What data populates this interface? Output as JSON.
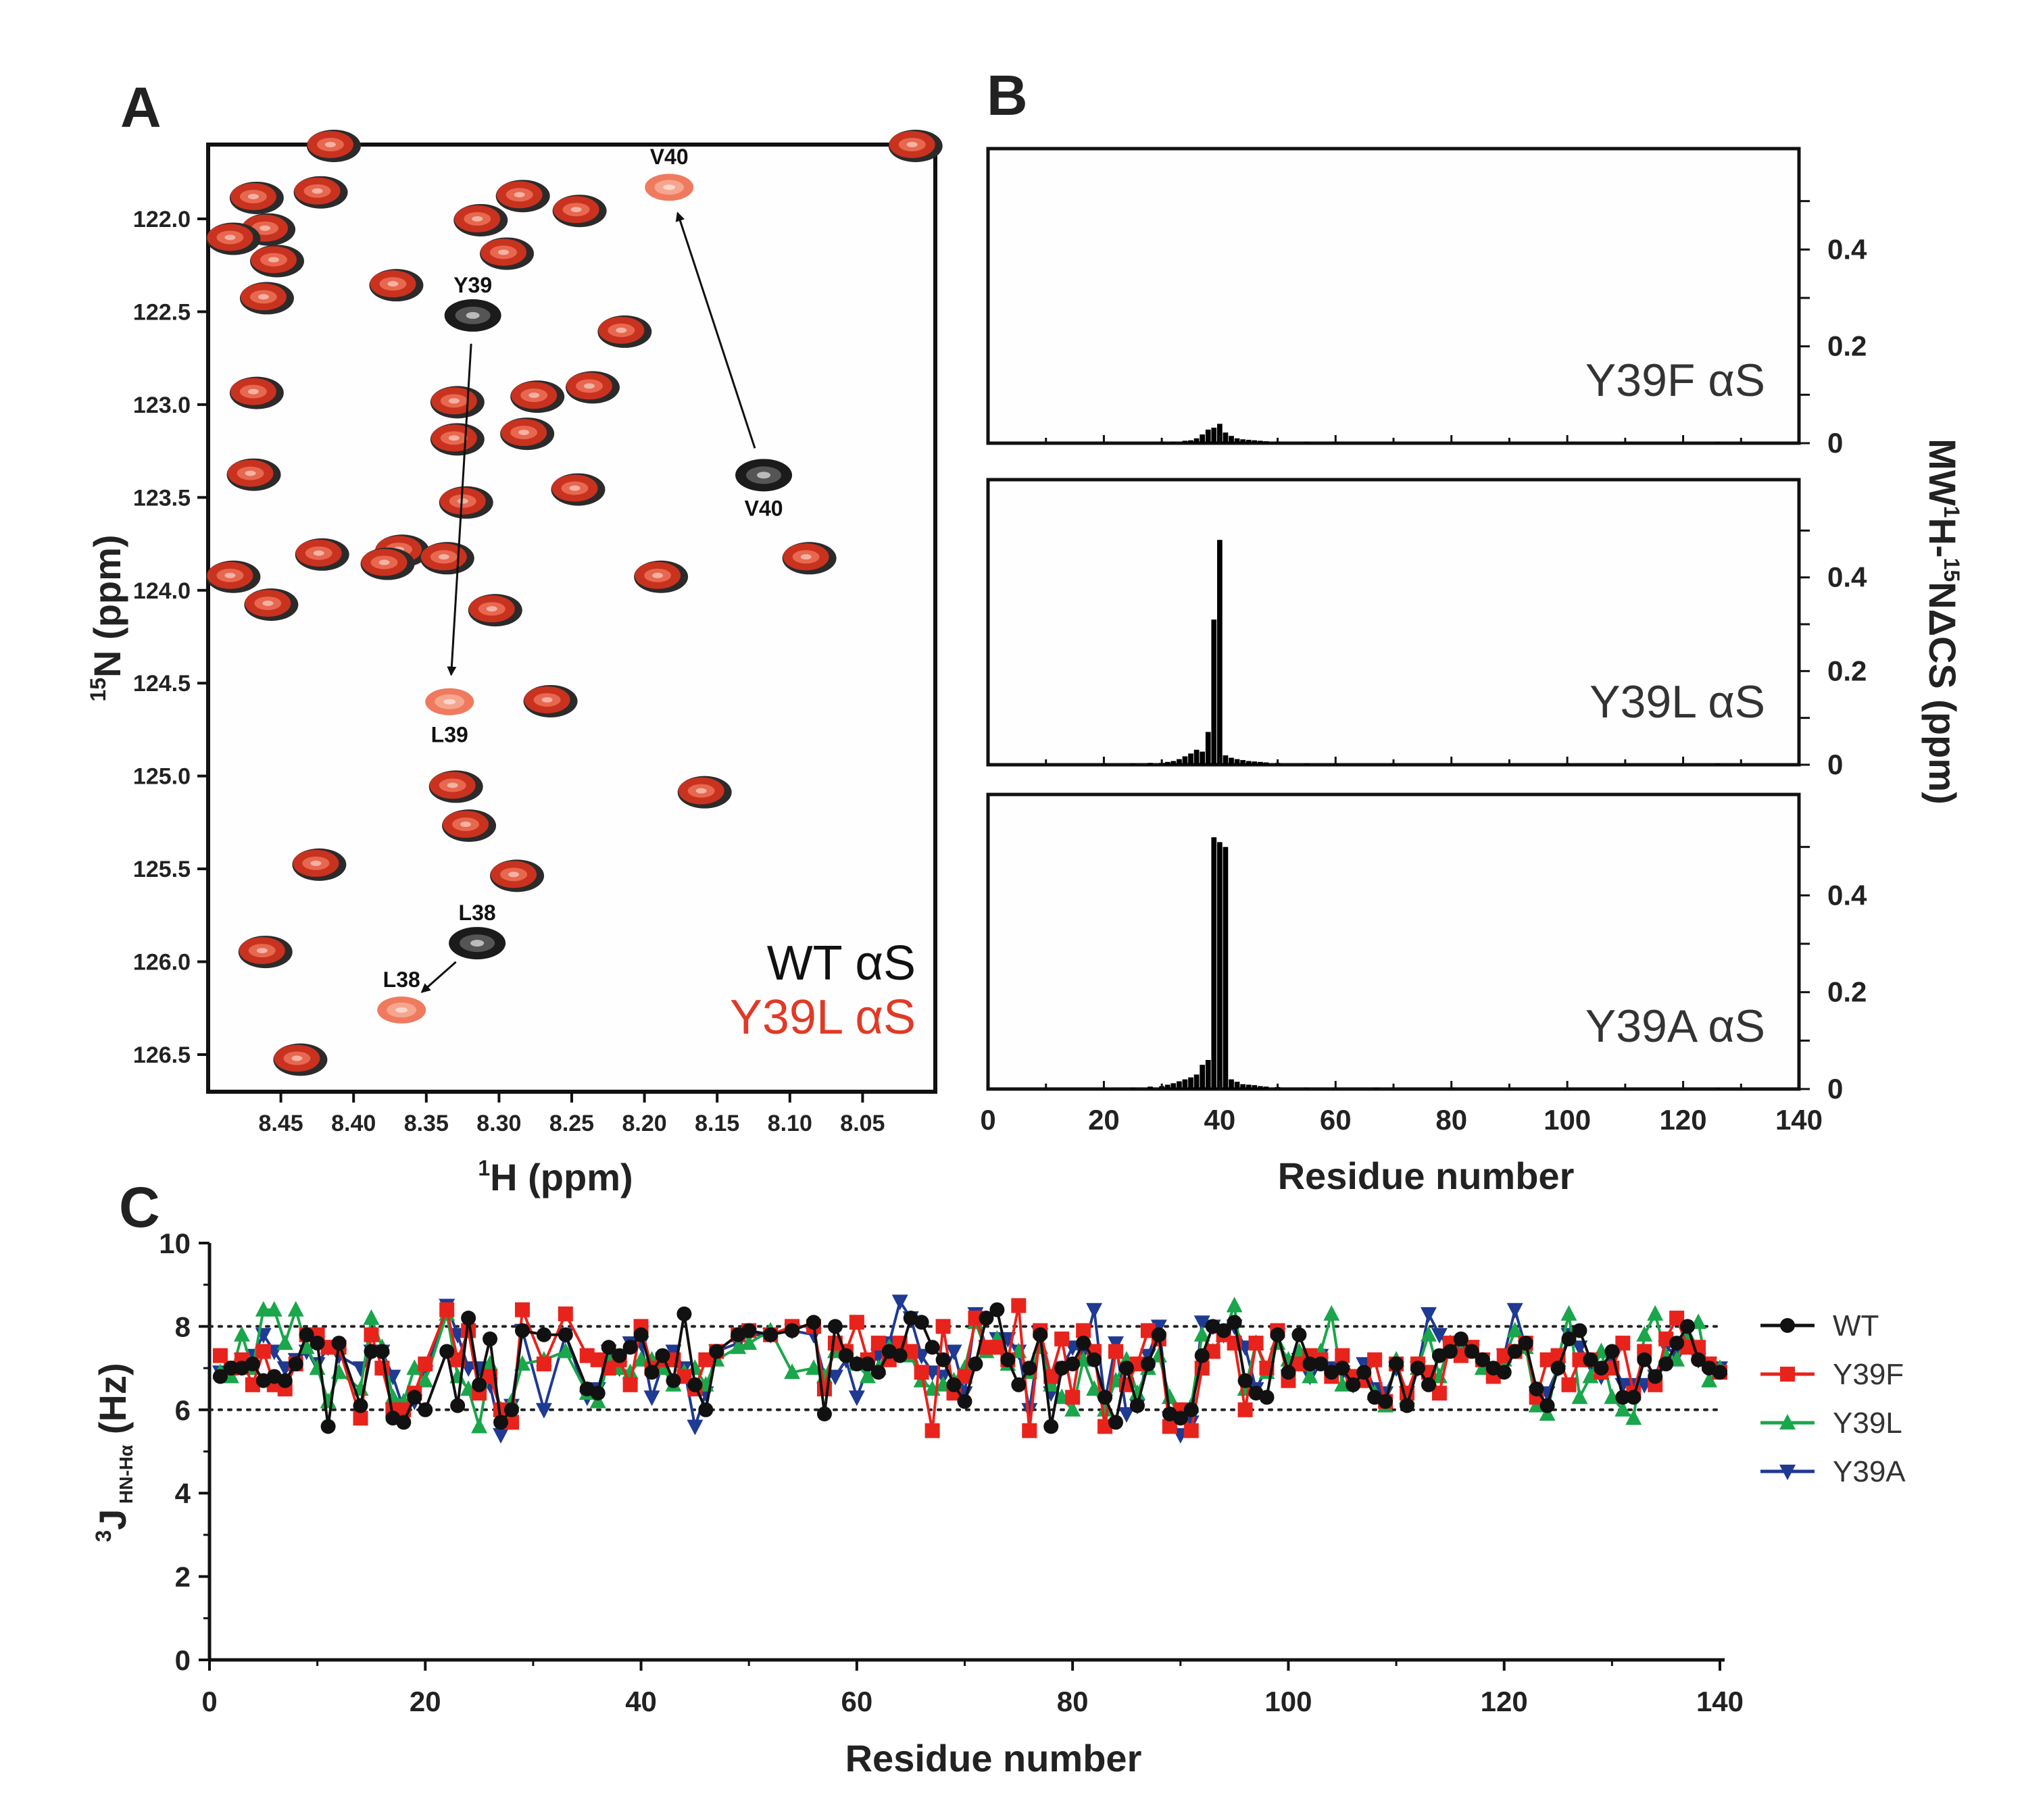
{
  "chart_data": [
    {
      "panel": "A",
      "type": "scatter",
      "subtype": "2D NMR HSQC overlay",
      "xlabel": "1H (ppm)",
      "ylabel": "15N (ppm)",
      "xlim": [
        8.5,
        8.0
      ],
      "ylim": [
        126.7,
        121.6
      ],
      "xticks": [
        "8.45",
        "8.40",
        "8.35",
        "8.30",
        "8.25",
        "8.20",
        "8.15",
        "8.10",
        "8.05"
      ],
      "yticks": [
        "122.0",
        "122.5",
        "123.0",
        "123.5",
        "124.0",
        "124.5",
        "125.0",
        "125.5",
        "126.0",
        "126.5"
      ],
      "legend": [
        {
          "label": "WT αS",
          "color": "#111111"
        },
        {
          "label": "Y39L αS",
          "color": "#e03a26"
        }
      ],
      "peaks_overlap": [
        [
          8.415,
          121.6
        ],
        [
          8.468,
          121.88
        ],
        [
          8.424,
          121.85
        ],
        [
          8.46,
          122.05
        ],
        [
          8.454,
          122.22
        ],
        [
          8.484,
          122.1
        ],
        [
          8.461,
          122.42
        ],
        [
          8.314,
          122.0
        ],
        [
          8.296,
          122.18
        ],
        [
          8.285,
          121.87
        ],
        [
          8.246,
          121.95
        ],
        [
          8.372,
          122.35
        ],
        [
          8.215,
          122.6
        ],
        [
          8.237,
          122.9
        ],
        [
          8.275,
          122.95
        ],
        [
          8.33,
          122.98
        ],
        [
          8.33,
          123.18
        ],
        [
          8.282,
          123.15
        ],
        [
          8.468,
          122.93
        ],
        [
          8.47,
          123.37
        ],
        [
          8.324,
          123.52
        ],
        [
          8.247,
          123.45
        ],
        [
          8.368,
          123.78
        ],
        [
          8.423,
          123.8
        ],
        [
          8.484,
          123.92
        ],
        [
          8.378,
          123.85
        ],
        [
          8.337,
          123.82
        ],
        [
          8.458,
          124.07
        ],
        [
          8.19,
          123.92
        ],
        [
          8.088,
          123.82
        ],
        [
          8.304,
          124.1
        ],
        [
          8.266,
          124.59
        ],
        [
          8.331,
          125.05
        ],
        [
          8.322,
          125.26
        ],
        [
          8.16,
          125.08
        ],
        [
          8.289,
          125.53
        ],
        [
          8.425,
          125.47
        ],
        [
          8.462,
          125.94
        ],
        [
          8.438,
          126.52
        ],
        [
          8.015,
          121.6
        ]
      ],
      "shifted_peaks": [
        {
          "label": "Y39",
          "wt": [
            8.318,
            122.52
          ],
          "mutant_label": "L39",
          "mutant": [
            8.334,
            124.6
          ]
        },
        {
          "label": "V40",
          "wt": [
            8.118,
            123.38
          ],
          "mutant_label": "V40",
          "mutant": [
            8.183,
            121.83
          ]
        },
        {
          "label": "L38",
          "wt": [
            8.315,
            125.9
          ],
          "mutant_label": "L38",
          "mutant": [
            8.367,
            126.26
          ]
        }
      ]
    },
    {
      "panel": "B",
      "type": "bar",
      "xlabel": "Residue number",
      "ylabel": "MW 1H-15NΔCS (ppm)",
      "xlim": [
        0,
        140
      ],
      "ylim": [
        0,
        0.6
      ],
      "xticks": [
        "0",
        "20",
        "40",
        "60",
        "80",
        "100",
        "120",
        "140"
      ],
      "yticks": [
        "0",
        "0.2",
        "0.4"
      ],
      "series": [
        {
          "name": "Y39F αS",
          "residues": [
            30,
            32,
            34,
            35,
            36,
            37,
            38,
            39,
            40,
            41,
            42,
            43,
            44,
            45,
            46,
            47,
            48,
            50,
            55,
            60,
            126
          ],
          "values": [
            0.002,
            0.003,
            0.005,
            0.006,
            0.01,
            0.018,
            0.028,
            0.032,
            0.04,
            0.022,
            0.015,
            0.01,
            0.008,
            0.007,
            0.006,
            0.005,
            0.004,
            0.003,
            0.002,
            0.002,
            0.002
          ]
        },
        {
          "name": "Y39L αS",
          "residues": [
            20,
            25,
            28,
            30,
            31,
            32,
            33,
            34,
            35,
            36,
            37,
            38,
            39,
            40,
            41,
            42,
            43,
            44,
            45,
            46,
            47,
            48,
            50,
            55,
            60,
            70,
            80,
            100,
            126
          ],
          "values": [
            0.002,
            0.003,
            0.004,
            0.004,
            0.006,
            0.008,
            0.012,
            0.018,
            0.024,
            0.032,
            0.028,
            0.07,
            0.31,
            0.48,
            0.02,
            0.015,
            0.012,
            0.01,
            0.008,
            0.007,
            0.006,
            0.005,
            0.004,
            0.003,
            0.002,
            0.002,
            0.002,
            0.002,
            0.002
          ]
        },
        {
          "name": "Y39A αS",
          "residues": [
            10,
            20,
            25,
            28,
            30,
            31,
            32,
            33,
            34,
            35,
            36,
            37,
            38,
            39,
            40,
            41,
            42,
            43,
            44,
            45,
            46,
            47,
            48,
            50,
            55,
            60,
            67,
            80,
            100,
            126
          ],
          "values": [
            0.002,
            0.002,
            0.003,
            0.005,
            0.006,
            0.009,
            0.012,
            0.016,
            0.02,
            0.024,
            0.03,
            0.05,
            0.06,
            0.52,
            0.51,
            0.5,
            0.02,
            0.015,
            0.01,
            0.009,
            0.008,
            0.006,
            0.005,
            0.004,
            0.003,
            0.002,
            0.003,
            0.002,
            0.002,
            0.002
          ]
        }
      ]
    },
    {
      "panel": "C",
      "type": "line",
      "xlabel": "Residue number",
      "ylabel": "3J HN-Hα (Hz)",
      "xlim": [
        0,
        140
      ],
      "ylim": [
        0,
        10
      ],
      "xticks": [
        "0",
        "20",
        "40",
        "60",
        "80",
        "100",
        "120",
        "140"
      ],
      "yticks": [
        "0",
        "2",
        "4",
        "6",
        "8",
        "10"
      ],
      "reference_lines": [
        6,
        8
      ],
      "x": [
        1,
        2,
        3,
        4,
        5,
        6,
        7,
        8,
        9,
        10,
        11,
        12,
        14,
        15,
        16,
        17,
        18,
        19,
        20,
        22,
        23,
        24,
        25,
        26,
        27,
        28,
        29,
        31,
        33,
        35,
        36,
        37,
        38,
        39,
        40,
        41,
        42,
        43,
        44,
        45,
        46,
        47,
        49,
        50,
        52,
        54,
        56,
        57,
        58,
        59,
        60,
        61,
        62,
        63,
        64,
        65,
        66,
        67,
        68,
        69,
        70,
        71,
        72,
        73,
        74,
        75,
        76,
        77,
        78,
        79,
        80,
        81,
        82,
        83,
        84,
        85,
        86,
        87,
        88,
        89,
        90,
        91,
        92,
        93,
        94,
        95,
        96,
        97,
        98,
        99,
        100,
        101,
        102,
        103,
        104,
        105,
        106,
        107,
        108,
        109,
        110,
        111,
        112,
        113,
        114,
        115,
        116,
        117,
        118,
        119,
        120,
        121,
        122,
        123,
        124,
        125,
        126,
        127,
        128,
        129,
        130,
        131,
        132,
        133,
        134,
        135,
        136,
        137,
        138,
        139,
        140
      ],
      "series": [
        {
          "name": "WT",
          "color": "#111111",
          "marker": "circle",
          "values": [
            6.8,
            7.0,
            7.0,
            7.1,
            6.7,
            6.8,
            6.7,
            7.1,
            7.8,
            7.6,
            5.6,
            7.6,
            6.1,
            7.4,
            7.4,
            5.8,
            5.7,
            6.3,
            6.0,
            7.4,
            6.1,
            8.2,
            6.6,
            7.7,
            5.7,
            6.0,
            7.9,
            7.8,
            7.8,
            6.5,
            6.4,
            7.5,
            7.3,
            7.5,
            7.8,
            6.9,
            7.3,
            6.7,
            8.3,
            6.6,
            6.0,
            7.4,
            7.8,
            7.9,
            7.8,
            7.9,
            8.1,
            5.9,
            8.0,
            7.3,
            7.1,
            7.1,
            6.9,
            7.4,
            7.3,
            8.2,
            8.1,
            7.5,
            7.2,
            6.6,
            6.2,
            7.1,
            8.2,
            8.4,
            7.2,
            6.6,
            7.0,
            7.8,
            5.6,
            7.0,
            7.1,
            7.6,
            7.2,
            6.3,
            5.7,
            7.0,
            6.1,
            7.1,
            7.8,
            5.9,
            5.8,
            6.0,
            7.3,
            8.0,
            7.9,
            8.1,
            6.7,
            6.4,
            6.3,
            7.8,
            6.9,
            7.8,
            7.1,
            7.1,
            6.9,
            7.0,
            6.6,
            6.9,
            6.3,
            6.2,
            7.1,
            6.1,
            7.0,
            6.6,
            7.3,
            7.4,
            7.7,
            7.4,
            7.2,
            7.0,
            6.9,
            7.4,
            7.6,
            6.5,
            6.1,
            7.0,
            7.7,
            7.9,
            7.2,
            7.0,
            7.4,
            6.3,
            6.3,
            7.2,
            6.8,
            7.1,
            7.6,
            8.0,
            7.2,
            7.0,
            6.9
          ]
        },
        {
          "name": "Y39F",
          "color": "#e8231c",
          "marker": "square",
          "values": [
            7.3,
            7.0,
            7.2,
            6.6,
            7.4,
            6.6,
            6.5,
            7.1,
            7.8,
            7.8,
            7.5,
            7.5,
            5.8,
            7.8,
            7.0,
            6.0,
            6.0,
            6.4,
            7.1,
            8.4,
            7.2,
            7.9,
            6.4,
            6.8,
            6.0,
            5.7,
            8.4,
            7.1,
            8.3,
            7.3,
            7.2,
            7.0,
            7.2,
            6.6,
            8.0,
            7.0,
            7.2,
            7.2,
            6.8,
            6.5,
            7.2,
            7.4,
            7.8,
            7.9,
            7.8,
            8.0,
            8.0,
            6.5,
            7.6,
            7.4,
            8.1,
            7.2,
            7.6,
            7.2,
            7.6,
            7.4,
            6.9,
            5.5,
            8.0,
            6.4,
            6.8,
            8.2,
            7.5,
            7.5,
            7.2,
            8.5,
            5.5,
            7.9,
            6.8,
            7.7,
            6.3,
            7.9,
            7.4,
            5.6,
            7.4,
            6.6,
            7.1,
            7.9,
            7.7,
            5.6,
            6.0,
            5.5,
            7.0,
            7.4,
            7.8,
            7.6,
            6.0,
            7.6,
            7.0,
            7.9,
            6.7,
            7.1,
            7.3,
            7.2,
            6.8,
            7.3,
            6.8,
            6.7,
            7.2,
            6.2,
            7.1,
            6.4,
            7.1,
            6.9,
            6.4,
            7.6,
            7.3,
            7.5,
            7.2,
            6.8,
            7.3,
            7.4,
            7.6,
            6.3,
            7.2,
            7.3,
            6.6,
            7.2,
            7.2,
            6.9,
            7.0,
            7.6,
            6.4,
            7.4,
            6.6,
            7.7,
            8.2,
            7.5,
            7.5,
            7.1,
            6.9
          ]
        },
        {
          "name": "Y39L",
          "color": "#1aa64a",
          "marker": "triangle-up",
          "values": [
            6.9,
            6.8,
            7.8,
            7.0,
            8.4,
            8.4,
            7.6,
            8.4,
            7.5,
            7.0,
            6.2,
            6.9,
            6.5,
            8.2,
            7.5,
            6.3,
            6.2,
            7.0,
            6.7,
            8.3,
            6.8,
            6.5,
            5.6,
            7.1,
            6.0,
            6.2,
            7.1,
            7.2,
            7.4,
            6.4,
            6.2,
            7.2,
            7.0,
            6.9,
            7.2,
            7.2,
            7.0,
            6.6,
            6.9,
            7.0,
            6.6,
            7.2,
            7.5,
            7.6,
            7.9,
            6.9,
            7.0,
            6.8,
            7.4,
            7.4,
            7.1,
            6.8,
            7.0,
            7.5,
            7.5,
            7.3,
            6.7,
            6.5,
            6.6,
            6.7,
            7.0,
            8.1,
            7.4,
            7.7,
            7.1,
            7.4,
            6.9,
            7.5,
            6.6,
            6.3,
            6.0,
            7.2,
            6.5,
            6.0,
            6.7,
            7.2,
            6.4,
            7.0,
            7.3,
            6.3,
            5.8,
            6.1,
            7.8,
            7.4,
            7.8,
            8.5,
            6.5,
            7.6,
            6.9,
            7.6,
            7.2,
            7.4,
            6.8,
            7.4,
            8.3,
            6.6,
            6.7,
            6.9,
            6.4,
            6.1,
            7.2,
            6.3,
            7.0,
            7.8,
            6.8,
            7.6,
            7.4,
            7.4,
            7.0,
            6.9,
            7.2,
            7.9,
            7.5,
            6.1,
            5.9,
            7.2,
            8.3,
            6.3,
            6.8,
            7.4,
            6.3,
            6.0,
            5.8,
            7.8,
            8.3,
            7.3,
            7.2,
            7.8,
            8.1,
            6.7,
            7.0
          ]
        },
        {
          "name": "Y39A",
          "color": "#1f3a93",
          "marker": "triangle-down",
          "values": [
            6.9,
            7.0,
            7.2,
            7.3,
            7.8,
            7.4,
            7.0,
            7.2,
            7.4,
            7.1,
            7.5,
            7.3,
            7.0,
            7.4,
            7.4,
            6.8,
            6.0,
            6.2,
            6.9,
            8.5,
            7.8,
            7.0,
            7.0,
            6.6,
            5.4,
            6.1,
            7.9,
            6.0,
            7.8,
            6.3,
            6.5,
            7.4,
            7.0,
            7.6,
            7.6,
            6.3,
            7.1,
            7.4,
            7.0,
            5.6,
            6.4,
            7.4,
            7.6,
            7.8,
            7.8,
            7.9,
            7.8,
            6.8,
            6.8,
            7.2,
            6.3,
            7.0,
            7.3,
            7.6,
            8.6,
            8.2,
            7.3,
            6.9,
            6.8,
            7.4,
            6.4,
            8.3,
            7.5,
            7.7,
            7.7,
            7.4,
            6.0,
            7.8,
            6.4,
            7.0,
            7.5,
            7.4,
            8.4,
            6.2,
            7.6,
            5.9,
            6.1,
            7.3,
            8.0,
            5.8,
            5.4,
            5.7,
            8.1,
            8.0,
            7.8,
            8.0,
            7.5,
            6.5,
            7.0,
            7.8,
            6.8,
            7.2,
            6.8,
            7.3,
            7.0,
            6.9,
            6.6,
            7.1,
            6.5,
            6.4,
            7.0,
            6.4,
            7.0,
            8.3,
            7.8,
            7.5,
            7.4,
            7.5,
            7.2,
            7.0,
            7.3,
            8.4,
            7.5,
            6.4,
            6.4,
            7.0,
            7.8,
            7.5,
            7.1,
            6.8,
            7.2,
            6.6,
            6.6,
            6.6,
            6.8,
            7.5,
            7.3,
            7.9,
            7.2,
            7.1,
            7.0
          ]
        }
      ]
    }
  ]
}
